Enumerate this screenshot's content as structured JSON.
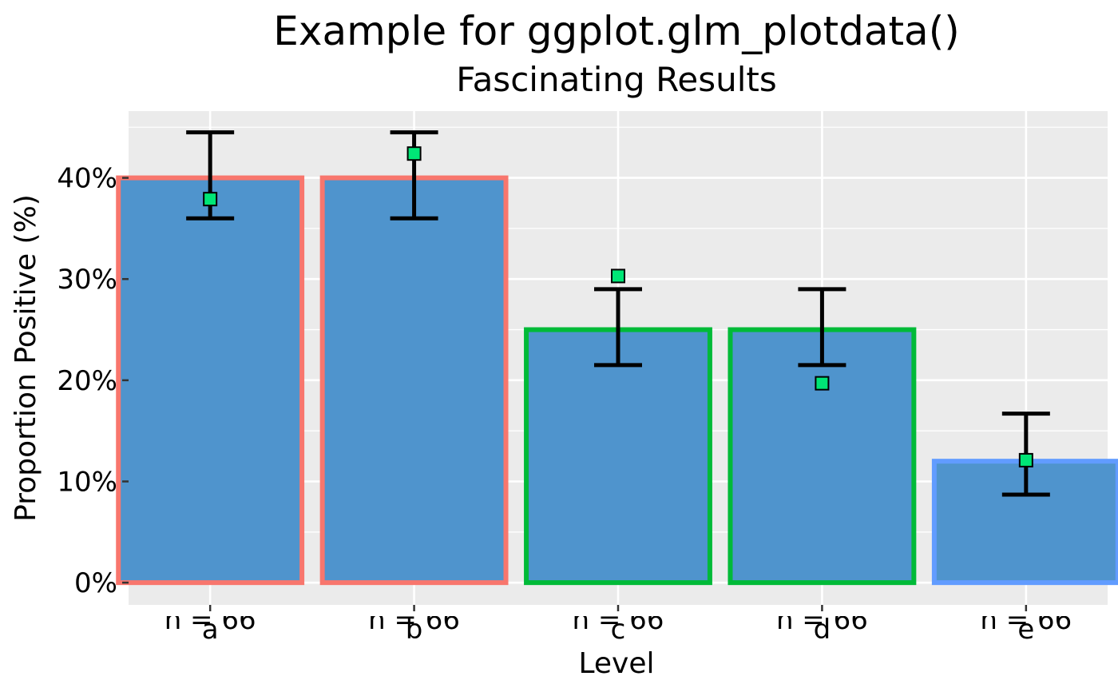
{
  "chart_data": {
    "type": "bar",
    "title": "Example for ggplot.glm_plotdata()",
    "subtitle": "Fascinating Results",
    "xlabel": "Level",
    "ylabel": "Proportion Positive (%)",
    "categories": [
      "a",
      "b",
      "c",
      "d",
      "e"
    ],
    "values": [
      0.4,
      0.4,
      0.25,
      0.25,
      0.12
    ],
    "error_bars": {
      "lower": [
        0.36,
        0.36,
        0.215,
        0.215,
        0.087
      ],
      "upper": [
        0.445,
        0.445,
        0.29,
        0.29,
        0.167
      ]
    },
    "points": [
      0.379,
      0.424,
      0.303,
      0.197,
      0.121
    ],
    "n_labels": [
      "n = 66",
      "n = 66",
      "n = 66",
      "n = 66",
      "n = 66"
    ],
    "ylim": [
      -0.022,
      0.466
    ],
    "yticks": [
      0,
      0.1,
      0.2,
      0.3,
      0.4
    ],
    "ytick_labels": [
      "0%",
      "10%",
      "20%",
      "30%",
      "40%"
    ],
    "grid": true,
    "colors": {
      "panel_bg": "#EBEBEB",
      "grid": "#FFFFFF",
      "bar_fill": "#4F94CD",
      "point_fill": "#00E676",
      "error_bar": "#000000",
      "bar_outline": [
        "#F8766D",
        "#F8766D",
        "#00BA38",
        "#00BA38",
        "#619CFF"
      ]
    }
  }
}
